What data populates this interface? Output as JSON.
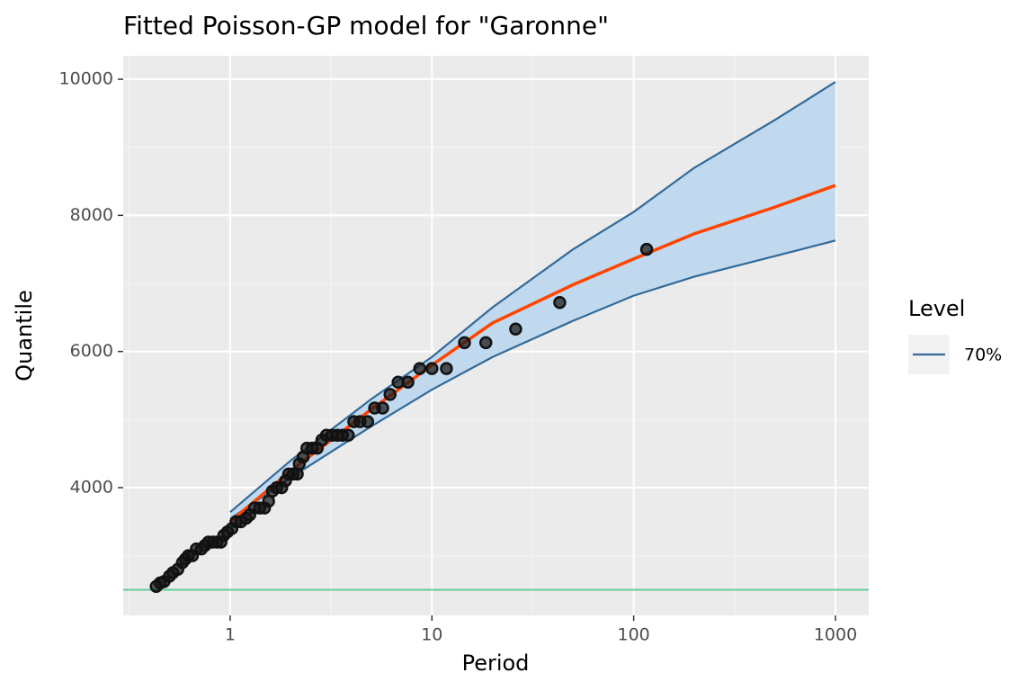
{
  "chart_data": {
    "type": "line",
    "title": "Fitted Poisson-GP model for \"Garonne\"",
    "x_label": "Period",
    "y_label": "Quantile",
    "xlog": true,
    "xlim": [
      0.295,
      1462
    ],
    "ylim": [
      2123,
      10344
    ],
    "xticks": [
      1,
      10,
      100,
      1000
    ],
    "xminor": [
      0.316,
      3.16,
      31.6,
      316
    ],
    "yticks": [
      4000,
      6000,
      8000,
      10000
    ],
    "yminor": [
      3000,
      5000,
      7000,
      9000
    ],
    "grid": true,
    "legend_title": "Level",
    "legend_position": "right",
    "band": {
      "name": "70%",
      "color": "#336a98",
      "fill": "#bdd7ee",
      "x": [
        1,
        2,
        5,
        10,
        20,
        50,
        100,
        200,
        500,
        1000
      ],
      "upper": [
        3640,
        4400,
        5300,
        5920,
        6650,
        7500,
        8050,
        8700,
        9400,
        9960
      ],
      "lower": [
        3540,
        4150,
        4900,
        5440,
        5920,
        6450,
        6820,
        7100,
        7400,
        7630
      ]
    },
    "fit": {
      "color": "#ff4500",
      "x": [
        1,
        2,
        5,
        10,
        20,
        50,
        100,
        200,
        500,
        1000
      ],
      "values": [
        3500,
        4250,
        5150,
        5800,
        6420,
        6980,
        7360,
        7730,
        8120,
        8440
      ]
    },
    "threshold": {
      "value": 2500,
      "color": "#66cc99"
    },
    "points": {
      "color": "#111111",
      "x": [
        0.43,
        0.45,
        0.47,
        0.5,
        0.52,
        0.55,
        0.58,
        0.6,
        0.62,
        0.65,
        0.68,
        0.72,
        0.75,
        0.78,
        0.82,
        0.86,
        0.9,
        0.93,
        0.97,
        1.02,
        1.07,
        1.13,
        1.2,
        1.25,
        1.32,
        1.4,
        1.48,
        1.55,
        1.62,
        1.7,
        1.8,
        1.88,
        1.95,
        2.05,
        2.15,
        2.2,
        2.3,
        2.4,
        2.55,
        2.7,
        2.85,
        3.0,
        3.2,
        3.4,
        3.6,
        3.85,
        4.1,
        4.4,
        4.8,
        5.2,
        5.7,
        6.2,
        6.8,
        7.6,
        8.7,
        10.0,
        11.8,
        14.5,
        18.5,
        26,
        43,
        116
      ],
      "values": [
        2550,
        2600,
        2620,
        2700,
        2750,
        2800,
        2900,
        2950,
        3000,
        3000,
        3100,
        3100,
        3150,
        3200,
        3200,
        3200,
        3200,
        3300,
        3350,
        3400,
        3500,
        3500,
        3550,
        3600,
        3700,
        3700,
        3700,
        3800,
        3950,
        4000,
        4000,
        4100,
        4200,
        4200,
        4200,
        4350,
        4450,
        4580,
        4580,
        4580,
        4700,
        4770,
        4770,
        4770,
        4770,
        4770,
        4970,
        4970,
        4970,
        5170,
        5170,
        5370,
        5550,
        5550,
        5750,
        5750,
        5750,
        6130,
        6130,
        6330,
        6720,
        7500
      ]
    }
  }
}
